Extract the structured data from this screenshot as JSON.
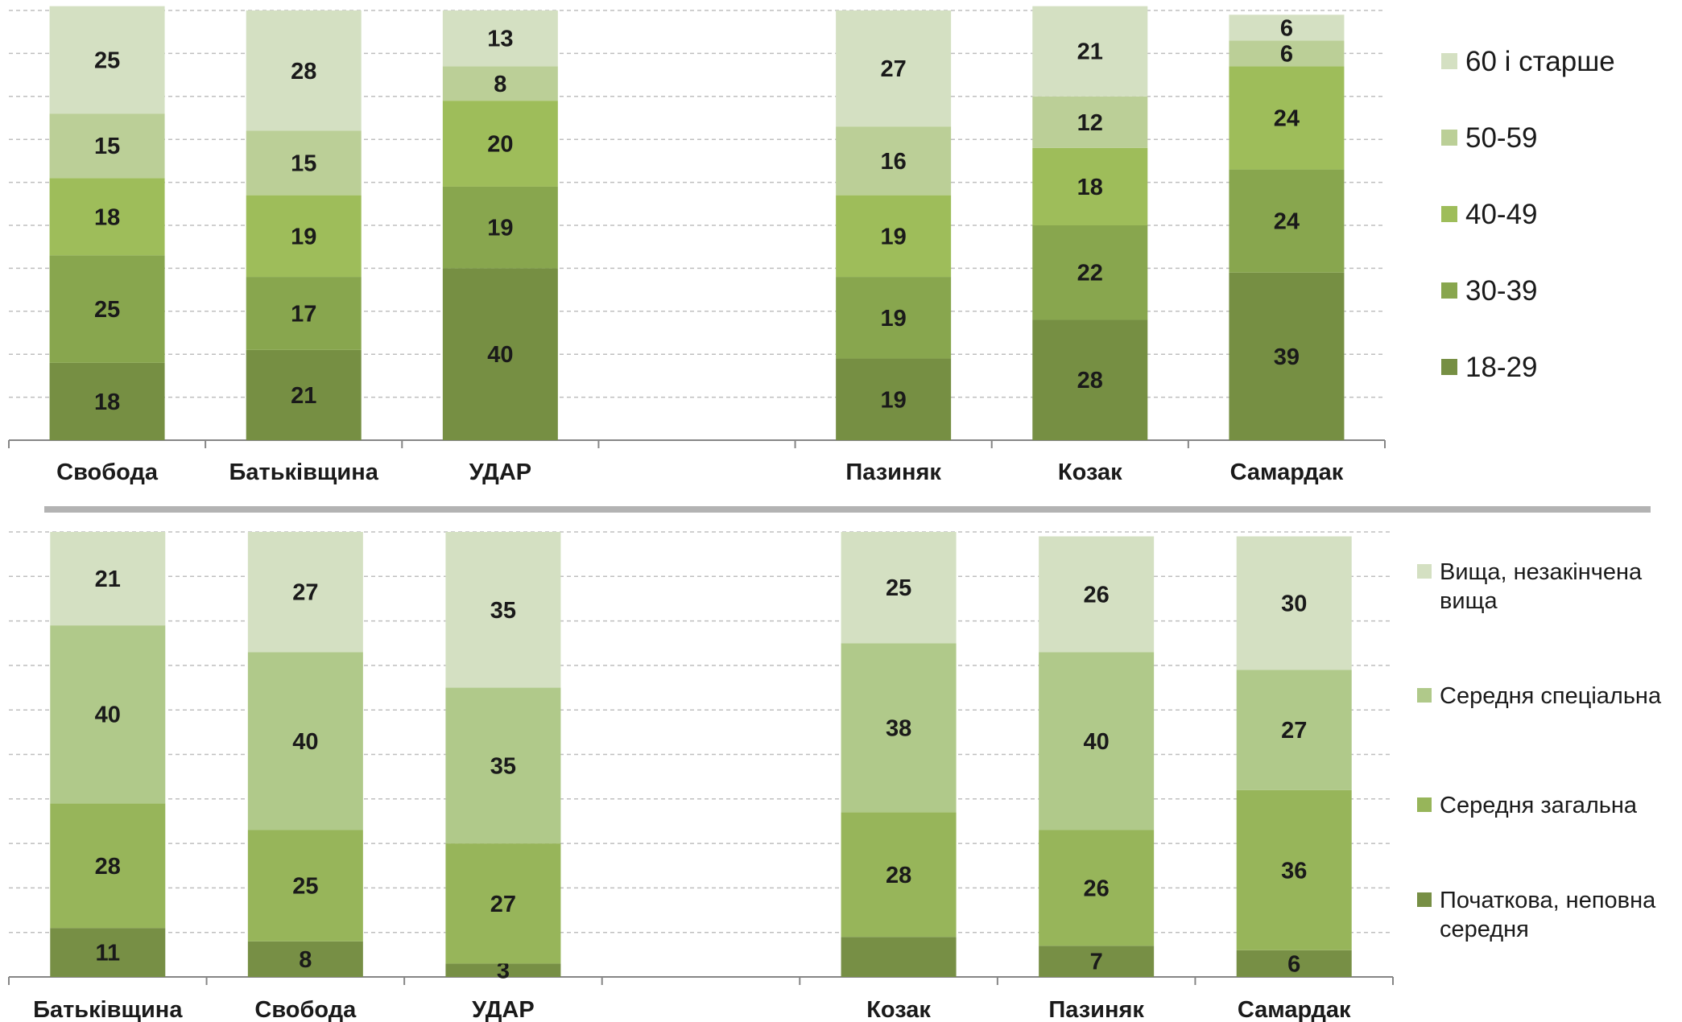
{
  "chart_data": [
    {
      "type": "bar",
      "stacked": true,
      "categories": [
        "Свобода",
        "Батьківщина",
        "УДАР",
        "",
        "Пазиняк",
        "Козак",
        "Самардак"
      ],
      "series": [
        {
          "name": "18-29",
          "values": [
            18,
            21,
            40,
            null,
            19,
            28,
            39
          ],
          "color": "#768f43"
        },
        {
          "name": "30-39",
          "values": [
            25,
            17,
            19,
            null,
            19,
            22,
            24
          ],
          "color": "#88a64e"
        },
        {
          "name": "40-49",
          "values": [
            18,
            19,
            20,
            null,
            19,
            18,
            24
          ],
          "color": "#9ebd5a"
        },
        {
          "name": "50-59",
          "values": [
            15,
            15,
            8,
            null,
            16,
            12,
            6
          ],
          "color": "#bbcf97"
        },
        {
          "name": "60 і старше",
          "values": [
            25,
            28,
            13,
            null,
            27,
            21,
            6
          ],
          "color": "#d4e0c2"
        }
      ],
      "legend_labels": [
        "60 і старше",
        "50-59",
        "40-49",
        "30-39",
        "18-29"
      ],
      "ylim": [
        0,
        100
      ],
      "grid": true,
      "legend_position": "right"
    },
    {
      "type": "bar",
      "stacked": true,
      "categories": [
        "Батьківщина",
        "Свобода",
        "УДАР",
        "",
        "Козак",
        "Пазиняк",
        "Самардак"
      ],
      "series": [
        {
          "name": "Початкова, неповна середня",
          "values": [
            11,
            8,
            3,
            null,
            9,
            7,
            6
          ],
          "value_labels": [
            "11",
            "8",
            "3",
            "",
            "",
            "7",
            "6"
          ],
          "color": "#778f45"
        },
        {
          "name": "Середня загальна",
          "values": [
            28,
            25,
            27,
            null,
            28,
            26,
            36
          ],
          "color": "#97b55a"
        },
        {
          "name": "Середня спеціальна",
          "values": [
            40,
            40,
            35,
            null,
            38,
            40,
            27
          ],
          "color": "#b0c98a"
        },
        {
          "name": "Вища, незакінчена вища",
          "values": [
            21,
            27,
            35,
            null,
            25,
            26,
            30
          ],
          "color": "#d4e0c2"
        }
      ],
      "legend_labels": [
        [
          "Вища, незакінчена",
          "вища"
        ],
        [
          "Середня спеціальна"
        ],
        [
          "Середня загальна"
        ],
        [
          "Початкова, неповна",
          "середня"
        ]
      ],
      "ylim": [
        0,
        100
      ],
      "grid": true,
      "legend_position": "right"
    }
  ]
}
